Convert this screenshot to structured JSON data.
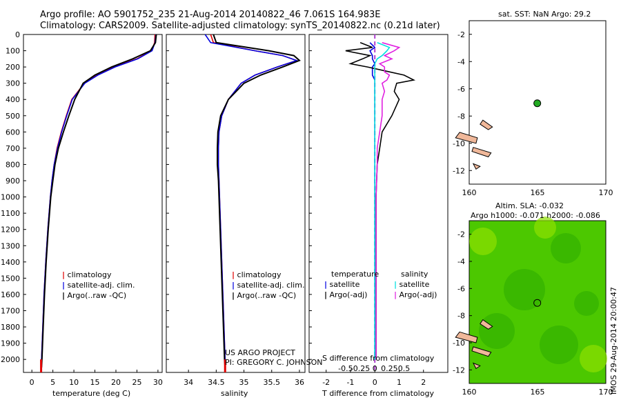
{
  "header": {
    "title_line1": "Argo profile: AO 5901752_235 21-Aug-2014 20140822_46 7.061S 164.983E",
    "title_line2": "Climatology: CARS2009. Satellite-adjusted climatology: synTS_20140822.nc (0.21d later)"
  },
  "colors": {
    "climatology": "#e00000",
    "satellite": "#0000e0",
    "argo": "#000000",
    "sal_sat": "#00e0e0",
    "sal_argo": "#e020e0",
    "land": "#f0b89a",
    "float_marker": "#22aa22"
  },
  "panels": {
    "temperature": {
      "xlabel": "temperature (deg C)",
      "xticks": [
        "0",
        "5",
        "10",
        "15",
        "20",
        "25",
        "30"
      ],
      "legend": [
        "climatology",
        "satellite-adj. clim.",
        "Argo(..raw -QC)"
      ]
    },
    "salinity": {
      "xlabel": "salinity",
      "xticks": [
        "34",
        "34.5",
        "35",
        "35.5",
        "36"
      ],
      "legend": [
        "climatology",
        "satellite-adj. clim.",
        "Argo(..raw -QC)"
      ],
      "credit1": "US ARGO PROJECT",
      "credit2": "PI: GREGORY C. JOHNSON"
    },
    "difference": {
      "xlabel": "T difference from climatology",
      "top_label": "S difference from climatology",
      "xticks_t": [
        "-2",
        "-1",
        "0",
        "1",
        "2"
      ],
      "xticks_s": [
        "-0.5",
        "-0.25",
        "0",
        "0.25",
        "0.5"
      ],
      "legend_t_head": "temperature",
      "legend_s_head": "salinity",
      "legend_t": [
        "satellite",
        "Argo(-adj)"
      ],
      "legend_s": [
        "satellite",
        "Argo(-adj)"
      ]
    },
    "map_sst": {
      "title": "sat. SST: NaN Argo: 29.2",
      "yticks": [
        "-2",
        "-4",
        "-6",
        "-8",
        "-10",
        "-12"
      ],
      "xticks": [
        "160",
        "165",
        "170"
      ]
    },
    "map_sla": {
      "title1": "Altim. SLA: -0.032",
      "title2": "Argo h1000: -0.071 h2000: -0.086",
      "yticks": [
        "-2",
        "-4",
        "-6",
        "-8",
        "-10",
        "-12"
      ],
      "xticks": [
        "160",
        "165",
        "170"
      ],
      "side_label": "IMOS 29-Aug-2014 20:00:47"
    }
  },
  "yticks": [
    "0",
    "100",
    "200",
    "300",
    "400",
    "500",
    "600",
    "700",
    "800",
    "900",
    "1000",
    "1100",
    "1200",
    "1300",
    "1400",
    "1500",
    "1600",
    "1700",
    "1800",
    "1900",
    "2000"
  ],
  "chart_data": [
    {
      "type": "line",
      "name": "temperature profile",
      "xlabel": "temperature (deg C)",
      "xlim": [
        -2,
        31
      ],
      "ylim": [
        2080,
        0
      ],
      "y": [
        0,
        50,
        100,
        150,
        200,
        250,
        300,
        400,
        500,
        600,
        700,
        800,
        900,
        1000,
        1200,
        1400,
        1600,
        1800,
        2000,
        2050
      ],
      "series": [
        {
          "name": "climatology",
          "values": [
            29.3,
            29.2,
            28.5,
            25.0,
            19.5,
            15.5,
            12.5,
            9.5,
            8.2,
            7.0,
            6.0,
            5.3,
            4.8,
            4.4,
            3.8,
            3.3,
            2.9,
            2.6,
            2.3,
            2.2
          ]
        },
        {
          "name": "satellite-adj. clim.",
          "values": [
            29.5,
            29.3,
            28.6,
            25.2,
            19.8,
            15.7,
            12.6,
            9.6,
            8.3,
            7.1,
            6.1,
            5.3,
            4.8,
            4.4,
            3.8,
            3.3,
            2.9,
            2.6,
            2.3,
            2.2
          ]
        },
        {
          "name": "Argo(..raw -QC)",
          "values": [
            29.6,
            29.4,
            28.2,
            24.0,
            19.0,
            15.0,
            12.2,
            10.2,
            8.8,
            7.5,
            6.3,
            5.5,
            5.0,
            4.5,
            3.9,
            3.4,
            3.0,
            2.7,
            2.4,
            2.3
          ]
        }
      ]
    },
    {
      "type": "line",
      "name": "salinity profile",
      "xlabel": "salinity",
      "xlim": [
        33.6,
        36.1
      ],
      "ylim": [
        2080,
        0
      ],
      "y": [
        0,
        50,
        100,
        130,
        160,
        200,
        250,
        300,
        400,
        500,
        600,
        700,
        800,
        900,
        1000,
        1200,
        1400,
        1600,
        1800,
        2000,
        2050
      ],
      "series": [
        {
          "name": "climatology",
          "values": [
            34.4,
            34.45,
            35.2,
            35.7,
            35.95,
            35.6,
            35.2,
            34.95,
            34.72,
            34.6,
            34.55,
            34.54,
            34.54,
            34.55,
            34.56,
            34.58,
            34.6,
            34.62,
            34.64,
            34.66,
            34.66
          ]
        },
        {
          "name": "satellite-adj. clim.",
          "values": [
            34.3,
            34.4,
            35.2,
            35.7,
            35.95,
            35.6,
            35.2,
            34.95,
            34.72,
            34.6,
            34.55,
            34.54,
            34.54,
            34.55,
            34.56,
            34.58,
            34.6,
            34.62,
            34.64,
            34.66,
            34.66
          ]
        },
        {
          "name": "Argo(..raw -QC)",
          "values": [
            34.45,
            34.5,
            35.45,
            35.9,
            36.0,
            35.7,
            35.3,
            35.0,
            34.72,
            34.58,
            34.53,
            34.52,
            34.52,
            34.54,
            34.55,
            34.57,
            34.59,
            34.61,
            34.63,
            34.65,
            34.66
          ]
        }
      ]
    },
    {
      "type": "line",
      "name": "difference profile",
      "xlabel": "T difference from climatology",
      "xlim": [
        -2.7,
        3.0
      ],
      "ylim": [
        2080,
        0
      ],
      "y": [
        50,
        80,
        100,
        130,
        150,
        180,
        200,
        230,
        250,
        280,
        300,
        350,
        400,
        500,
        600,
        700,
        800,
        1000,
        1200,
        1500,
        1800,
        2000
      ],
      "series": [
        {
          "name": "satellite",
          "values": [
            -0.2,
            0.0,
            -0.2,
            -0.1,
            -0.1,
            0.0,
            -0.1,
            -0.1,
            -0.1,
            0.0,
            0.0,
            0.0,
            0.0,
            0.0,
            0.0,
            0.0,
            0.0,
            0.0,
            0.0,
            0.0,
            0.0,
            0.0
          ]
        },
        {
          "name": "Argo(-adj)",
          "values": [
            -0.6,
            -0.1,
            -1.2,
            -0.2,
            -0.5,
            -1.0,
            -0.3,
            0.6,
            1.2,
            1.6,
            0.9,
            0.8,
            1.0,
            0.7,
            0.3,
            0.2,
            0.1,
            0.05,
            0.05,
            0.05,
            0.05,
            0.05
          ]
        },
        {
          "name": "satellite (salinity)",
          "values": [
            0.1,
            0.6,
            0.5,
            0.3,
            0.1,
            0.0,
            0.0,
            0.0,
            0.0,
            0.0,
            0.0,
            0.0,
            0.0,
            0.0,
            0.0,
            0.0,
            0.0,
            0.0,
            0.0,
            0.0,
            0.0,
            0.0
          ]
        },
        {
          "name": "Argo(-adj) (salinity)",
          "values": [
            0.3,
            1.0,
            0.8,
            0.4,
            0.7,
            0.2,
            0.4,
            0.4,
            0.6,
            0.5,
            0.3,
            0.4,
            0.3,
            0.3,
            0.2,
            0.1,
            0.1,
            0.05,
            0.05,
            0.05,
            0.05,
            0.05
          ]
        }
      ]
    },
    {
      "type": "scatter",
      "name": "float location",
      "x": [
        164.983
      ],
      "y": [
        -7.061
      ],
      "xlim": [
        160,
        170
      ],
      "ylim": [
        -13,
        -1
      ]
    }
  ]
}
